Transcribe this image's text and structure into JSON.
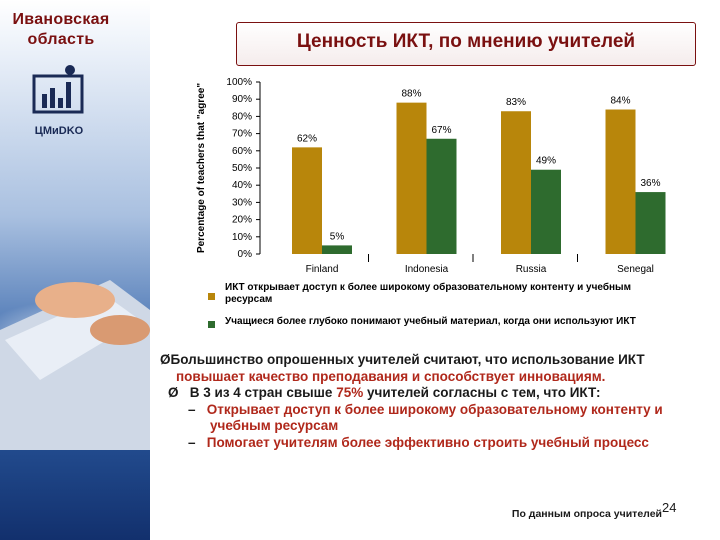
{
  "sidebar": {
    "region_line1": "Ивановская",
    "region_line2": "область",
    "logo_text": "ЦМиDKO"
  },
  "header": {
    "title": "Ценность ИКТ, по мнению учителей"
  },
  "chart_data": {
    "type": "bar",
    "ylabel": "Percentage of teachers that \"agree\"",
    "ylim": [
      0,
      100
    ],
    "yticks": [
      "0%",
      "10%",
      "20%",
      "30%",
      "40%",
      "50%",
      "60%",
      "70%",
      "80%",
      "90%",
      "100%"
    ],
    "categories": [
      "Finland",
      "Indonesia",
      "Russia",
      "Senegal"
    ],
    "series": [
      {
        "name": "ИКТ открывает доступ к более широкому образовательному контенту и учебным ресурсам",
        "color": "#b8860b",
        "values": [
          62,
          88,
          83,
          84
        ],
        "labels": [
          "62%",
          "88%",
          "83%",
          "84%"
        ]
      },
      {
        "name": "Учащиеся более глубоко понимают учебный материал, когда они используют ИКТ",
        "color": "#2e6b2e",
        "values": [
          5,
          67,
          49,
          36
        ],
        "labels": [
          "5%",
          "67%",
          "49%",
          "36%"
        ]
      }
    ],
    "grid": false,
    "legend": "bottom"
  },
  "bullets": {
    "b1_arrow": "Ø",
    "b1_text_a": "Большинство опрошенных учителей считают, что использование ИКТ ",
    "b1_text_red": "повышает качество преподавания и способствует инновациям.",
    "b2_arrow": "Ø",
    "b2_text_a": "В 3 из 4 стран свыше ",
    "b2_text_red": "75%",
    "b2_text_b": " учителей согласны с тем, что ИКТ:",
    "sub1_dash": "–",
    "sub1_text": "Открывает доступ к более широкому образовательному контенту и учебным ресурсам",
    "sub2_dash": "–",
    "sub2_text": "Помогает учителям более эффективно строить учебный процесс"
  },
  "footer": {
    "source": "По данным опроса учителей",
    "page": "24"
  }
}
